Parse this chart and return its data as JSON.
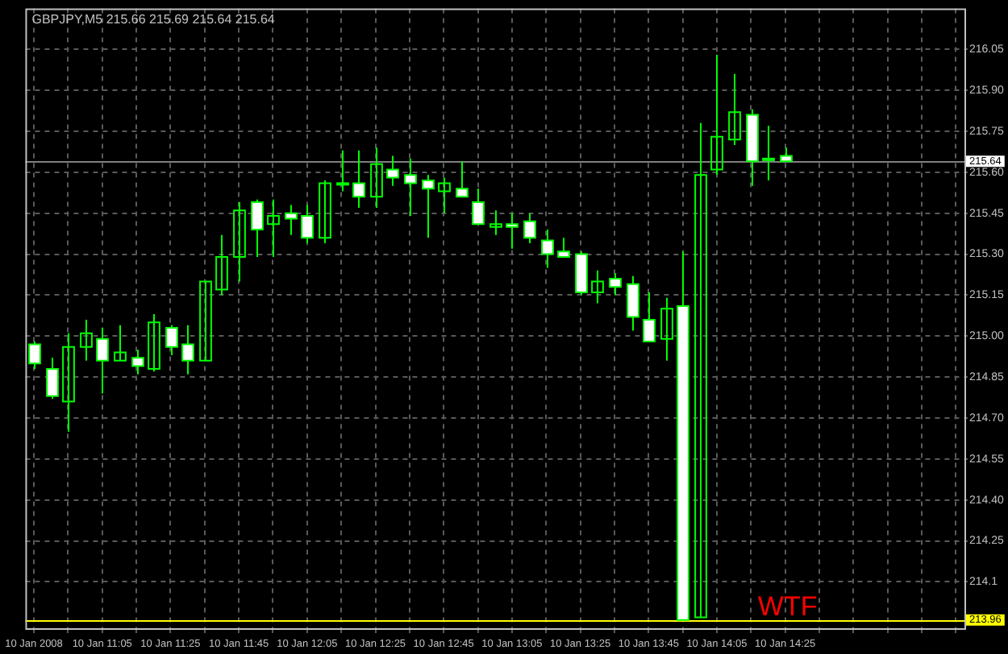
{
  "chart_data": {
    "type": "candlestick",
    "title": "GBPJPY,M5 215.66 215.69 215.64 215.64",
    "categories": [
      "10 Jan 2008",
      null,
      null,
      null,
      "10 Jan 11:05",
      null,
      null,
      null,
      "10 Jan 11:25",
      null,
      null,
      null,
      "10 Jan 11:45",
      null,
      null,
      null,
      "10 Jan 12:05",
      null,
      null,
      null,
      "10 Jan 12:25",
      null,
      null,
      null,
      "10 Jan 12:45",
      null,
      null,
      null,
      "10 Jan 13:05",
      null,
      null,
      null,
      "10 Jan 13:25",
      null,
      null,
      null,
      "10 Jan 13:45",
      null,
      null,
      null,
      "10 Jan 14:05",
      null,
      null,
      null,
      "10 Jan 14:25",
      null,
      null,
      null,
      null,
      null,
      null,
      null,
      null,
      null,
      null
    ],
    "ohlc": [
      [
        214.97,
        214.98,
        214.88,
        214.9
      ],
      [
        214.88,
        214.92,
        214.77,
        214.78
      ],
      [
        214.76,
        215.01,
        214.65,
        214.96
      ],
      [
        214.96,
        215.06,
        214.91,
        215.01
      ],
      [
        214.99,
        215.03,
        214.79,
        214.91
      ],
      [
        214.91,
        215.04,
        214.91,
        214.94
      ],
      [
        214.92,
        214.95,
        214.86,
        214.89
      ],
      [
        214.88,
        215.08,
        214.87,
        215.05
      ],
      [
        215.03,
        215.04,
        214.93,
        214.96
      ],
      [
        214.97,
        215.04,
        214.86,
        214.91
      ],
      [
        214.91,
        215.2,
        214.91,
        215.2
      ],
      [
        215.17,
        215.37,
        215.15,
        215.29
      ],
      [
        215.29,
        215.49,
        215.2,
        215.46
      ],
      [
        215.49,
        215.5,
        215.29,
        215.39
      ],
      [
        215.41,
        215.5,
        215.29,
        215.44
      ],
      [
        215.45,
        215.48,
        215.37,
        215.43
      ],
      [
        215.44,
        215.48,
        215.34,
        215.36
      ],
      [
        215.36,
        215.57,
        215.34,
        215.56
      ],
      [
        215.56,
        215.68,
        215.53,
        215.56
      ],
      [
        215.56,
        215.68,
        215.47,
        215.51
      ],
      [
        215.51,
        215.69,
        215.47,
        215.63
      ],
      [
        215.61,
        215.66,
        215.55,
        215.58
      ],
      [
        215.59,
        215.65,
        215.44,
        215.56
      ],
      [
        215.57,
        215.59,
        215.36,
        215.54
      ],
      [
        215.53,
        215.58,
        215.45,
        215.56
      ],
      [
        215.54,
        215.64,
        215.51,
        215.51
      ],
      [
        215.49,
        215.54,
        215.41,
        215.41
      ],
      [
        215.4,
        215.46,
        215.37,
        215.41
      ],
      [
        215.41,
        215.45,
        215.32,
        215.4
      ],
      [
        215.42,
        215.45,
        215.34,
        215.36
      ],
      [
        215.35,
        215.39,
        215.25,
        215.3
      ],
      [
        215.31,
        215.36,
        215.29,
        215.29
      ],
      [
        215.3,
        215.31,
        215.15,
        215.16
      ],
      [
        215.16,
        215.24,
        215.12,
        215.2
      ],
      [
        215.21,
        215.23,
        215.15,
        215.18
      ],
      [
        215.19,
        215.22,
        215.02,
        215.07
      ],
      [
        215.06,
        215.16,
        214.98,
        214.98
      ],
      [
        214.99,
        215.14,
        214.91,
        215.1
      ],
      [
        215.11,
        215.31,
        213.96,
        213.96
      ],
      [
        213.97,
        215.78,
        213.97,
        215.59
      ],
      [
        215.61,
        216.03,
        215.59,
        215.73
      ],
      [
        215.72,
        215.96,
        215.7,
        215.82
      ],
      [
        215.81,
        215.83,
        215.55,
        215.64
      ],
      [
        215.65,
        215.77,
        215.57,
        215.65
      ],
      [
        215.66,
        215.69,
        215.64,
        215.64
      ],
      null,
      null,
      null,
      null,
      null,
      null,
      null,
      null,
      null,
      null
    ],
    "color": "#00ff00",
    "colors": [
      "#ffffff",
      "#ffffff",
      "#00ff00",
      "#00ff00",
      "#ffffff",
      "#00ff00",
      "#ffffff",
      "#00ff00",
      "#ffffff",
      "#ffffff",
      "#00ff00",
      "#00ff00",
      "#00ff00",
      "#ffffff",
      "#00ff00",
      "#ffffff",
      "#ffffff",
      "#00ff00",
      "#00ff00",
      "#ffffff",
      "#00ff00",
      "#ffffff",
      "#ffffff",
      "#ffffff",
      "#00ff00",
      "#ffffff",
      "#ffffff",
      "#00ff00",
      "#ffffff",
      "#ffffff",
      "#ffffff",
      "#ffffff",
      "#ffffff",
      "#00ff00",
      "#ffffff",
      "#ffffff",
      "#ffffff",
      "#00ff00",
      "#ffffff",
      "#00ff00",
      "#00ff00",
      "#00ff00",
      "#ffffff",
      "#00ff00",
      "#ffffff",
      null,
      null,
      null,
      null,
      null,
      null,
      null,
      null,
      null,
      null
    ],
    "ylim": [
      213.93,
      216.2
    ],
    "yticks": [
      214.1,
      214.25,
      {
        "value": 214.4,
        "label": "214.40"
      },
      214.55,
      {
        "value": 214.7,
        "label": "214.70"
      },
      214.85,
      {
        "value": 215,
        "label": "215.00"
      },
      215.15,
      {
        "value": 215.3,
        "label": "215.30"
      },
      215.45,
      {
        "value": 215.6,
        "label": "215.60"
      },
      215.75,
      {
        "value": 215.9,
        "label": "215.90"
      },
      216.05
    ],
    "ref_lines": [
      {
        "axis": "y",
        "value": 215.64,
        "label": "215.64",
        "color": "#808080"
      },
      {
        "axis": "y",
        "value": 213.96,
        "label": "213.96",
        "color": "#ffff00"
      }
    ],
    "annotations": [
      "WTF"
    ],
    "grid": true,
    "legend": false
  }
}
